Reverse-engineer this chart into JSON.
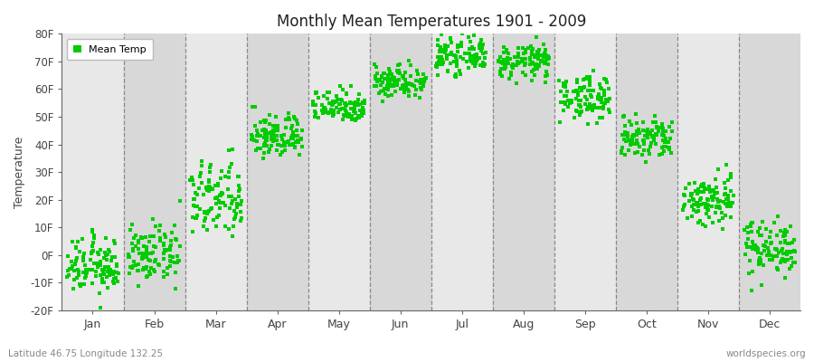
{
  "title": "Monthly Mean Temperatures 1901 - 2009",
  "ylabel": "Temperature",
  "bottom_left_label": "Latitude 46.75 Longitude 132.25",
  "bottom_right_label": "worldspecies.org",
  "legend_label": "Mean Temp",
  "dot_color": "#00cc00",
  "background_color": "#ffffff",
  "plot_bg_even": "#e8e8e8",
  "plot_bg_odd": "#d8d8d8",
  "ytick_labels": [
    "-20F",
    "-10F",
    "0F",
    "10F",
    "20F",
    "30F",
    "40F",
    "50F",
    "60F",
    "70F",
    "80F"
  ],
  "ytick_values": [
    -20,
    -10,
    0,
    10,
    20,
    30,
    40,
    50,
    60,
    70,
    80
  ],
  "ylim": [
    -20,
    80
  ],
  "months": [
    "Jan",
    "Feb",
    "Mar",
    "Apr",
    "May",
    "Jun",
    "Jul",
    "Aug",
    "Sep",
    "Oct",
    "Nov",
    "Dec"
  ],
  "monthly_means": [
    -4,
    0,
    20,
    43,
    54,
    63,
    72,
    70,
    57,
    42,
    20,
    3
  ],
  "monthly_stds": [
    5,
    5,
    7,
    4,
    3,
    3,
    3,
    3,
    4,
    4,
    5,
    5
  ],
  "n_years": 109,
  "marker_size": 6,
  "figwidth": 9.0,
  "figheight": 4.0,
  "dpi": 100
}
